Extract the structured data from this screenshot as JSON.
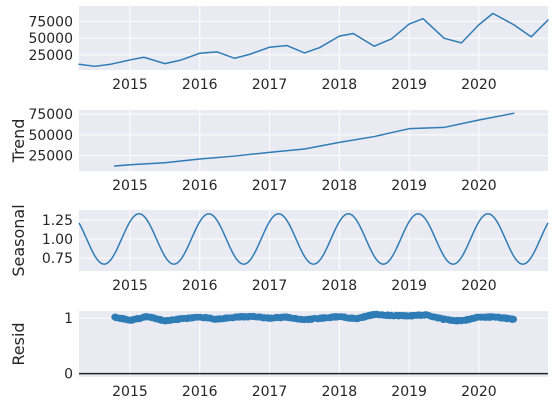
{
  "chart_data": [
    {
      "type": "line",
      "title": "",
      "ylabel": "",
      "x_domain": [
        2014.27,
        2020.99
      ],
      "ylim": [
        2500,
        98000
      ],
      "xticks": [
        2015,
        2016,
        2017,
        2018,
        2019,
        2020
      ],
      "xtick_labels": [
        "2015",
        "2016",
        "2017",
        "2018",
        "2019",
        "2020"
      ],
      "yticks": [
        25000,
        50000,
        75000
      ],
      "ytick_labels": [
        "25000",
        "50000",
        "75000"
      ],
      "series": [
        {
          "name": "",
          "x": [
            2014.27,
            2014.5,
            2014.72,
            2015.0,
            2015.2,
            2015.5,
            2015.72,
            2016.0,
            2016.25,
            2016.5,
            2016.72,
            2017.0,
            2017.25,
            2017.5,
            2017.72,
            2018.0,
            2018.2,
            2018.5,
            2018.75,
            2019.0,
            2019.2,
            2019.5,
            2019.75,
            2020.0,
            2020.2,
            2020.5,
            2020.75,
            2020.99
          ],
          "y": [
            11000,
            8000,
            11000,
            17500,
            21500,
            12000,
            17000,
            27500,
            29500,
            20000,
            26000,
            36500,
            39000,
            28000,
            36000,
            53000,
            57000,
            38000,
            49000,
            71000,
            79000,
            50000,
            43000,
            70000,
            87000,
            70000,
            52000,
            77000
          ]
        }
      ]
    },
    {
      "type": "line",
      "title": "",
      "ylabel": "Trend",
      "x_domain": [
        2014.27,
        2020.99
      ],
      "ylim": [
        6500,
        80000
      ],
      "xticks": [
        2015,
        2016,
        2017,
        2018,
        2019,
        2020
      ],
      "xtick_labels": [
        "2015",
        "2016",
        "2017",
        "2018",
        "2019",
        "2020"
      ],
      "yticks": [
        25000,
        50000,
        75000
      ],
      "ytick_labels": [
        "25000",
        "50000",
        "75000"
      ],
      "series": [
        {
          "name": "",
          "x": [
            2014.78,
            2015.0,
            2015.5,
            2016.0,
            2016.5,
            2017.0,
            2017.5,
            2018.0,
            2018.5,
            2019.0,
            2019.5,
            2020.0,
            2020.5
          ],
          "y": [
            12500,
            14000,
            16500,
            21000,
            24500,
            29000,
            33000,
            41000,
            48000,
            57500,
            59000,
            68000,
            76000
          ]
        }
      ]
    },
    {
      "type": "line",
      "title": "",
      "ylabel": "Seasonal",
      "x_domain": [
        2014.27,
        2020.99
      ],
      "ylim": [
        0.58,
        1.38
      ],
      "xticks": [
        2015,
        2016,
        2017,
        2018,
        2019,
        2020
      ],
      "xtick_labels": [
        "2015",
        "2016",
        "2017",
        "2018",
        "2019",
        "2020"
      ],
      "yticks": [
        0.75,
        1.0,
        1.25
      ],
      "ytick_labels": [
        "0.75",
        "1.00",
        "1.25"
      ],
      "seasonal_amplitude": 0.33,
      "seasonal_mean": 1.0,
      "seasonal_peak": 2015.13,
      "series": [
        {
          "name": "",
          "x": [
            2014.27,
            2014.5,
            2014.63,
            2014.8,
            2015.13,
            2015.4,
            2015.63,
            2015.9,
            2016.13
          ],
          "y": [
            1.29,
            0.88,
            0.67,
            0.94,
            1.33,
            1.02,
            0.67,
            1.06,
            1.33
          ]
        }
      ]
    },
    {
      "type": "scatter",
      "title": "",
      "ylabel": "Resid",
      "x_domain": [
        2014.27,
        2020.99
      ],
      "ylim": [
        -0.06,
        1.13
      ],
      "xticks": [
        2015,
        2016,
        2017,
        2018,
        2019,
        2020
      ],
      "xtick_labels": [
        "2015",
        "2016",
        "2017",
        "2018",
        "2019",
        "2020"
      ],
      "yticks": [
        0,
        1
      ],
      "ytick_labels": [
        "0",
        "1"
      ],
      "baseline": 0,
      "series": [
        {
          "name": "",
          "x": [
            2014.78,
            2015.0,
            2015.25,
            2015.5,
            2015.75,
            2016.0,
            2016.25,
            2016.5,
            2016.75,
            2017.0,
            2017.25,
            2017.5,
            2017.75,
            2018.0,
            2018.25,
            2018.5,
            2018.75,
            2019.0,
            2019.25,
            2019.5,
            2019.75,
            2020.0,
            2020.25,
            2020.5
          ],
          "y": [
            1.02,
            0.96,
            1.03,
            0.95,
            0.99,
            1.02,
            0.98,
            1.02,
            1.03,
            1.0,
            1.02,
            0.97,
            1.0,
            1.03,
            0.99,
            1.07,
            1.05,
            1.04,
            1.06,
            0.98,
            0.95,
            1.02,
            1.02,
            0.98
          ]
        }
      ]
    }
  ],
  "colors": {
    "line": "#2f7cb6",
    "panel": "#eaeaf2",
    "grid": "#ffffff",
    "text": "#262626",
    "baseline": "#262626"
  }
}
